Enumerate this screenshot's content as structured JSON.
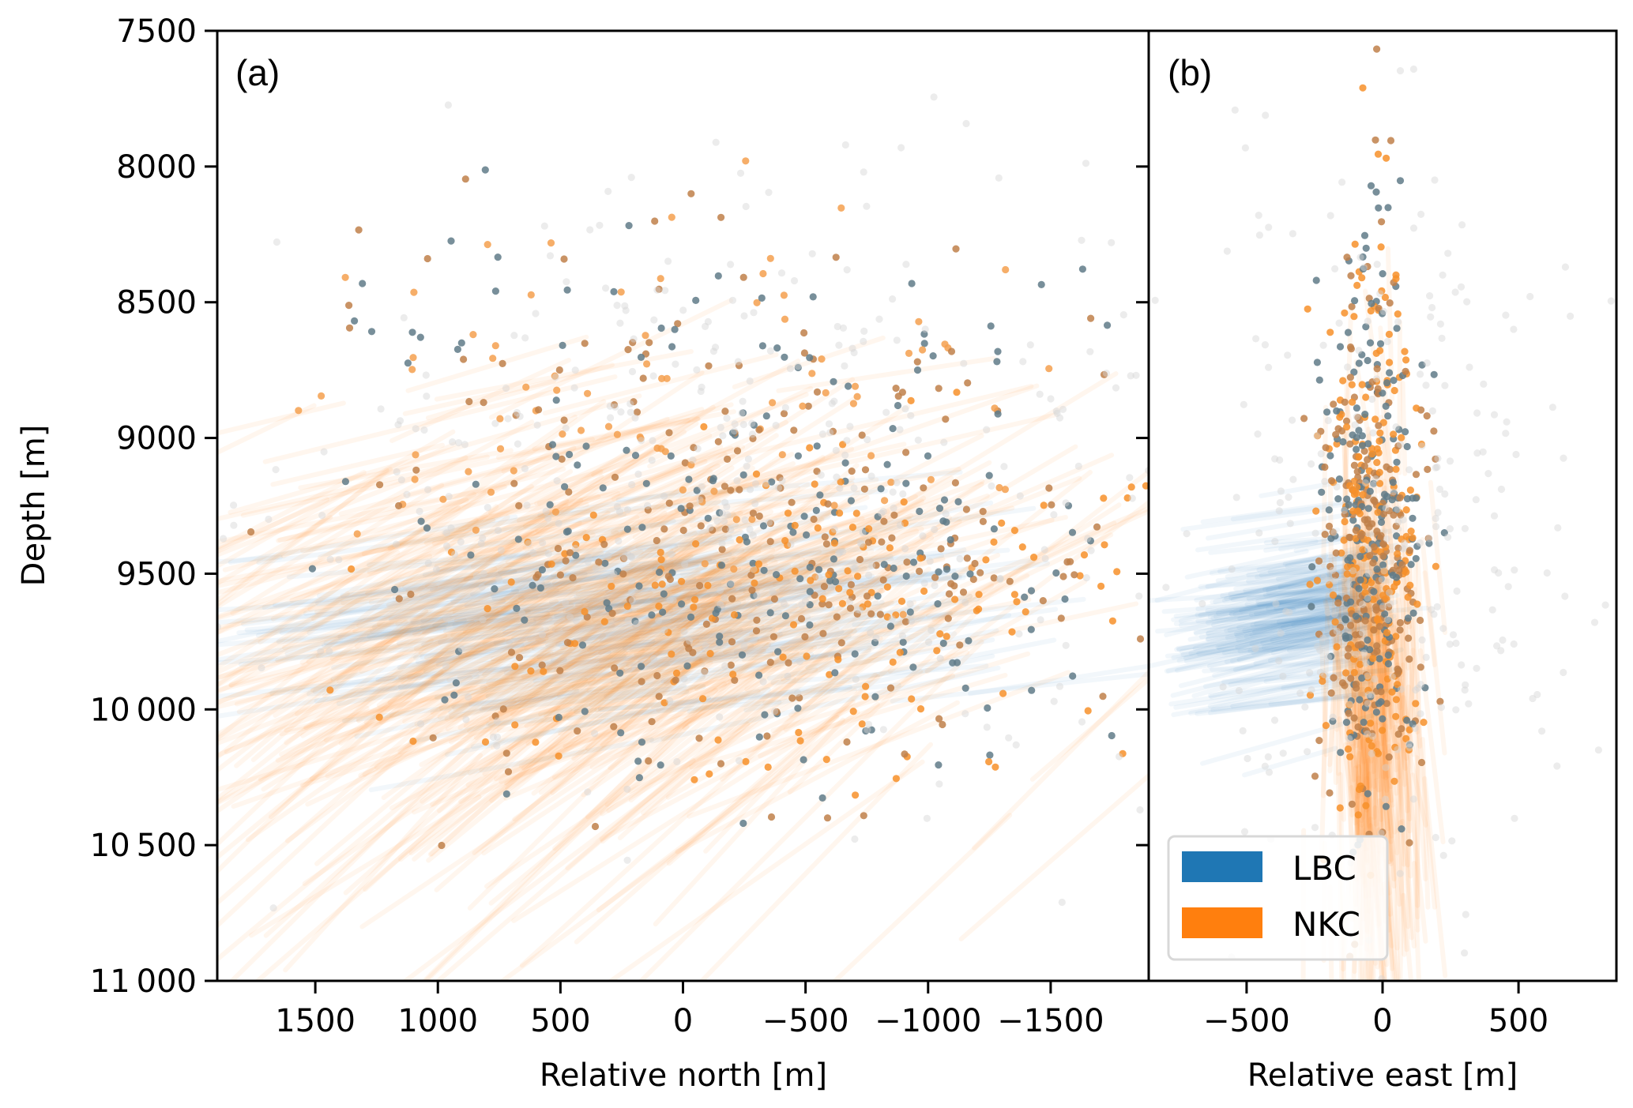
{
  "chart_data": [
    {
      "panel": "a",
      "type": "scatter",
      "panel_label": "(a)",
      "xlabel": "Relative north [m]",
      "ylabel": "Depth [m]",
      "xlim": [
        1900,
        -1900
      ],
      "ylim": [
        11000,
        7500
      ],
      "x_inverted": true,
      "y_inverted": true,
      "xticks": [
        1500,
        1000,
        500,
        0,
        -500,
        -1000,
        -1500
      ],
      "xtick_labels": [
        "1500",
        "1000",
        "500",
        "0",
        "−500",
        "−1000",
        "−1500"
      ],
      "yticks": [
        7500,
        8000,
        8500,
        9000,
        9500,
        10000,
        10500,
        11000
      ],
      "ytick_labels": [
        "7500",
        "8000",
        "8500",
        "9000",
        "9500",
        "10 000",
        "10 500",
        "11 000"
      ],
      "grid": false,
      "series": [
        {
          "name": "LBC",
          "color": "#1f77b4",
          "kind": "trajectory-lines",
          "description": "faint blue streaks from event locations toward the wells",
          "center": [
            -300,
            9600
          ],
          "spread": [
            700,
            220
          ],
          "count": 160,
          "direction": [
            1,
            0.12
          ],
          "length_range": [
            700,
            1500
          ]
        },
        {
          "name": "NKC",
          "color": "#ff7f0e",
          "kind": "trajectory-lines",
          "description": "orange streaks from event locations toward the wells",
          "center": [
            -200,
            9400
          ],
          "spread": [
            750,
            330
          ],
          "count": 420,
          "direction": [
            1,
            0.3
          ],
          "length_range": [
            600,
            1700
          ]
        },
        {
          "name": "events-upper-scatter",
          "kind": "points",
          "colors": [
            "#f5a04f",
            "#c0804a",
            "#607b88"
          ],
          "center": [
            -100,
            8900
          ],
          "spread": [
            900,
            350
          ],
          "count": 260
        },
        {
          "name": "events-main-cluster",
          "kind": "points",
          "colors": [
            "#f7902a",
            "#c0804a",
            "#607b88"
          ],
          "center": [
            -500,
            9500
          ],
          "spread": [
            700,
            220
          ],
          "count": 380
        },
        {
          "name": "events-deep-fringe",
          "kind": "points",
          "colors": [
            "#f7902a",
            "#c0804a",
            "#607b88"
          ],
          "center": [
            -300,
            10050
          ],
          "spread": [
            700,
            180
          ],
          "count": 90
        },
        {
          "name": "events-unassigned",
          "kind": "points",
          "colors": [
            "#d4d4d4"
          ],
          "center": [
            -300,
            9200
          ],
          "spread": [
            1100,
            550
          ],
          "count": 420
        }
      ]
    },
    {
      "panel": "b",
      "type": "scatter",
      "panel_label": "(b)",
      "xlabel": "Relative east [m]",
      "xlim": [
        -860,
        860
      ],
      "ylim": [
        11000,
        7500
      ],
      "y_inverted": true,
      "xticks": [
        -500,
        0,
        500
      ],
      "xtick_labels": [
        "−500",
        "0",
        "500"
      ],
      "grid": false,
      "legend": {
        "placement": "lower-left",
        "entries": [
          {
            "label": "LBC",
            "color": "#1f77b4"
          },
          {
            "label": "NKC",
            "color": "#ff7f0e"
          }
        ]
      },
      "series": [
        {
          "name": "LBC",
          "color": "#1f77b4",
          "kind": "trajectory-lines",
          "center": [
            -80,
            9600
          ],
          "spread": [
            80,
            150
          ],
          "count": 170,
          "direction": [
            -1,
            0.15
          ],
          "length_range": [
            300,
            700
          ]
        },
        {
          "name": "NKC",
          "color": "#ff7f0e",
          "kind": "trajectory-lines",
          "center": [
            -50,
            9700
          ],
          "spread": [
            80,
            450
          ],
          "count": 260
        },
        {
          "name": "events-column",
          "kind": "points",
          "colors": [
            "#f7902a",
            "#c0804a",
            "#607b88"
          ],
          "center": [
            -40,
            9350
          ],
          "spread": [
            90,
            520
          ],
          "count": 620
        },
        {
          "name": "events-unassigned",
          "kind": "points",
          "colors": [
            "#d4d4d4"
          ],
          "center": [
            0,
            9400
          ],
          "spread": [
            320,
            600
          ],
          "count": 260
        }
      ]
    }
  ]
}
